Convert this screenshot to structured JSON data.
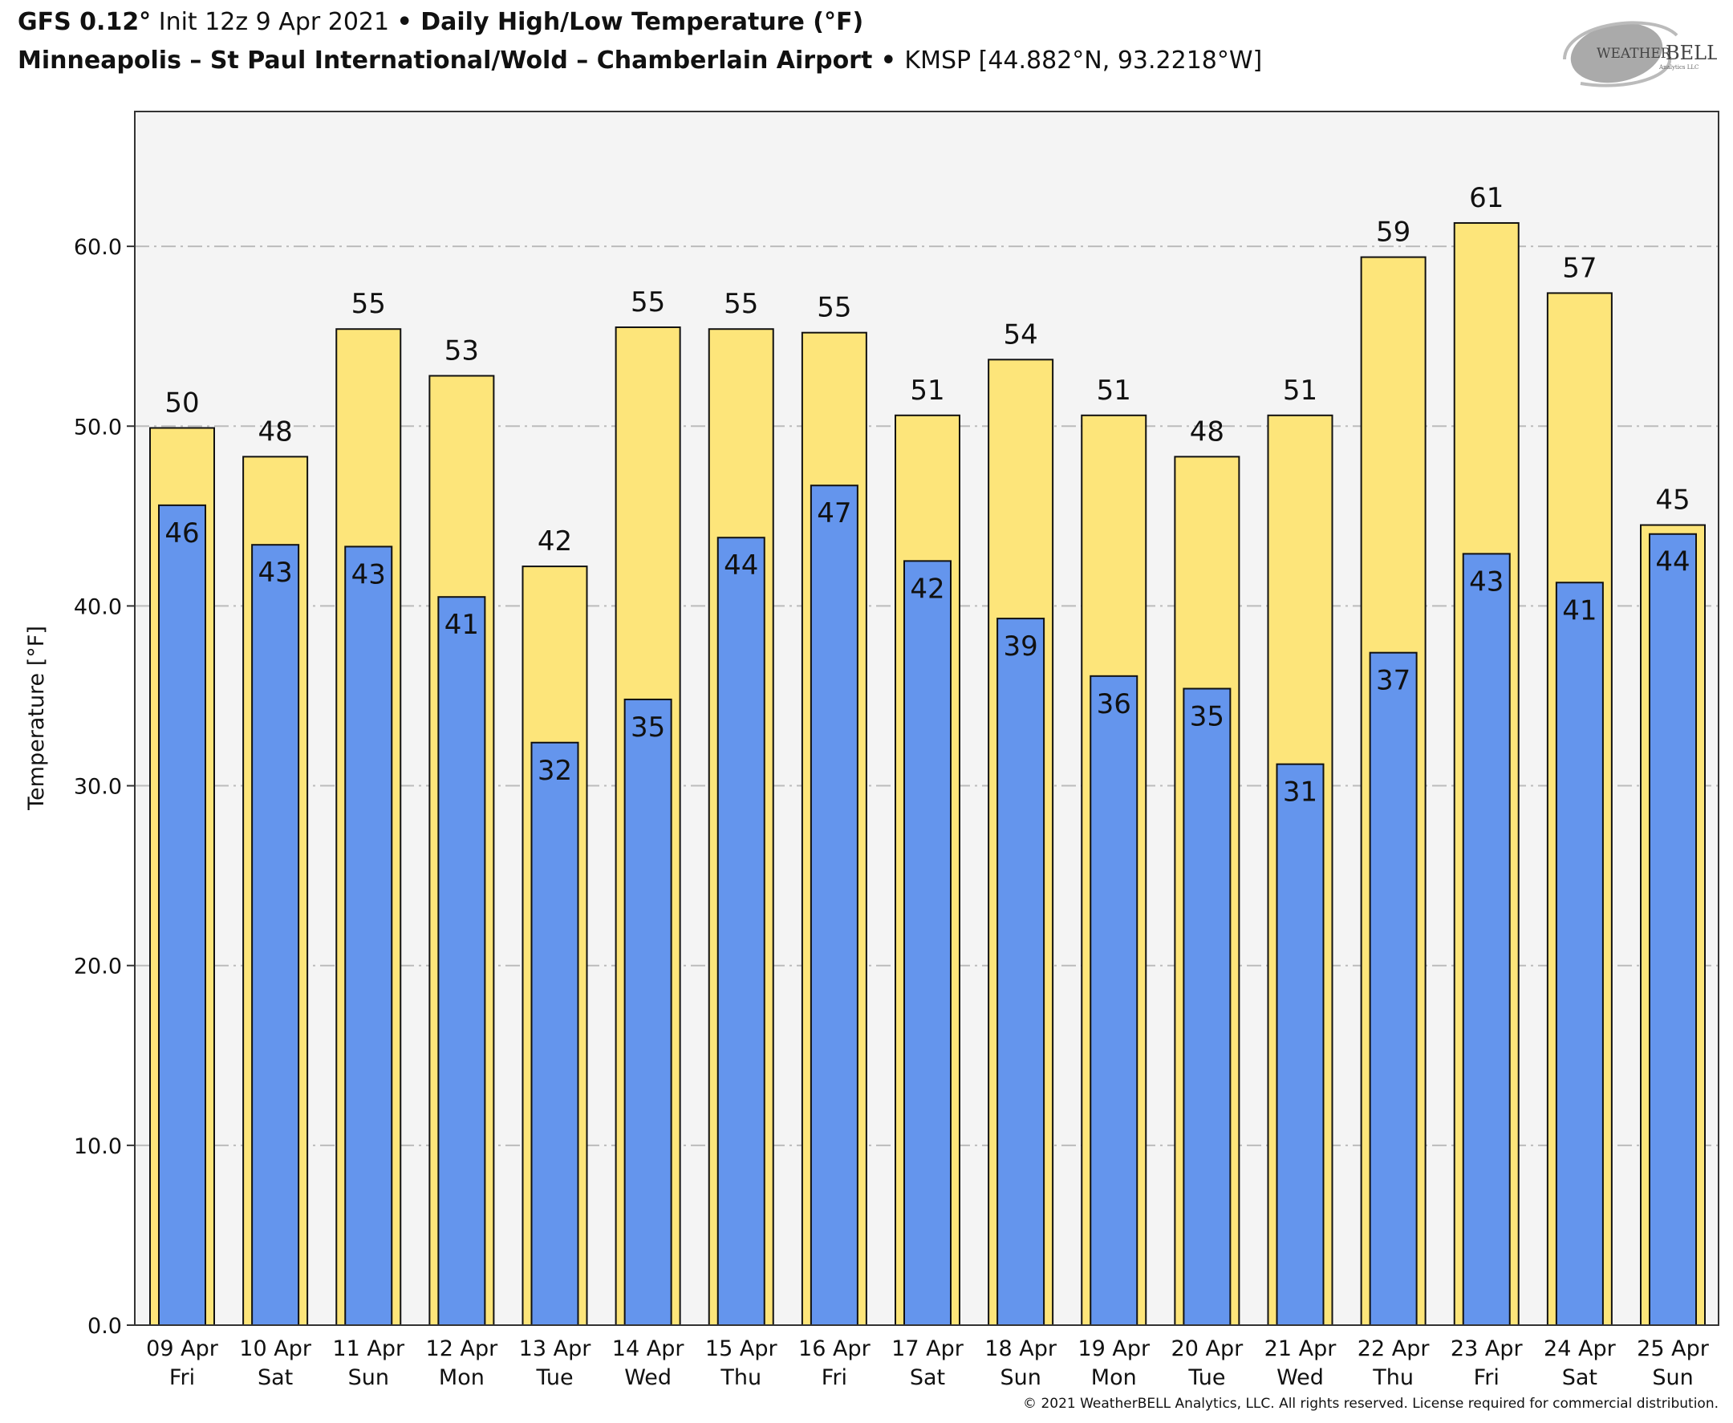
{
  "header": {
    "model": "GFS 0.12°",
    "init": " Init 12z 9 Apr 2021 ",
    "sep": "• ",
    "product": "Daily High/Low Temperature (°F)",
    "station_name": "Minneapolis – St Paul International/Wold – Chamberlain Airport",
    "station_sep": " • ",
    "station_info": "KMSP [44.882°N, 93.2218°W]"
  },
  "logo": {
    "brand": "WeatherBELL",
    "sub": "Analytics LLC"
  },
  "footer": {
    "copyright": "© 2021 WeatherBELL Analytics, LLC. All rights reserved. License required for commercial distribution."
  },
  "colors": {
    "high": "#fde57a",
    "low": "#6495ed",
    "plot_bg": "#f4f4f4",
    "grid": "#bbbbbb",
    "edge": "#111111"
  },
  "chart_data": {
    "type": "bar",
    "title": "Daily High/Low Temperature (°F)",
    "xlabel": "",
    "ylabel": "Temperature [°F]",
    "ylim": [
      0,
      67.5
    ],
    "yticks": [
      0,
      10,
      20,
      30,
      40,
      50,
      60
    ],
    "ytick_labels": [
      "0.0",
      "10.0",
      "20.0",
      "30.0",
      "40.0",
      "50.0",
      "60.0"
    ],
    "grid": true,
    "categories": [
      "09 Apr",
      "10 Apr",
      "11 Apr",
      "12 Apr",
      "13 Apr",
      "14 Apr",
      "15 Apr",
      "16 Apr",
      "17 Apr",
      "18 Apr",
      "19 Apr",
      "20 Apr",
      "21 Apr",
      "22 Apr",
      "23 Apr",
      "24 Apr",
      "25 Apr"
    ],
    "weekdays": [
      "Fri",
      "Sat",
      "Sun",
      "Mon",
      "Tue",
      "Wed",
      "Thu",
      "Fri",
      "Sat",
      "Sun",
      "Mon",
      "Tue",
      "Wed",
      "Thu",
      "Fri",
      "Sat",
      "Sun"
    ],
    "series": [
      {
        "name": "High",
        "values": [
          49.9,
          48.3,
          55.4,
          52.8,
          42.2,
          55.5,
          55.4,
          55.2,
          50.6,
          53.7,
          50.6,
          48.3,
          50.6,
          59.4,
          61.3,
          57.4,
          44.5
        ],
        "labels": [
          "50",
          "48",
          "55",
          "53",
          "42",
          "55",
          "55",
          "55",
          "51",
          "54",
          "51",
          "48",
          "51",
          "59",
          "61",
          "57",
          "45"
        ]
      },
      {
        "name": "Low",
        "values": [
          45.6,
          43.4,
          43.3,
          40.5,
          32.4,
          34.8,
          43.8,
          46.7,
          42.5,
          39.3,
          36.1,
          35.4,
          31.2,
          37.4,
          42.9,
          41.3,
          44.0
        ],
        "labels": [
          "46",
          "43",
          "43",
          "41",
          "32",
          "35",
          "44",
          "47",
          "42",
          "39",
          "36",
          "35",
          "31",
          "37",
          "43",
          "41",
          "44"
        ]
      }
    ]
  }
}
